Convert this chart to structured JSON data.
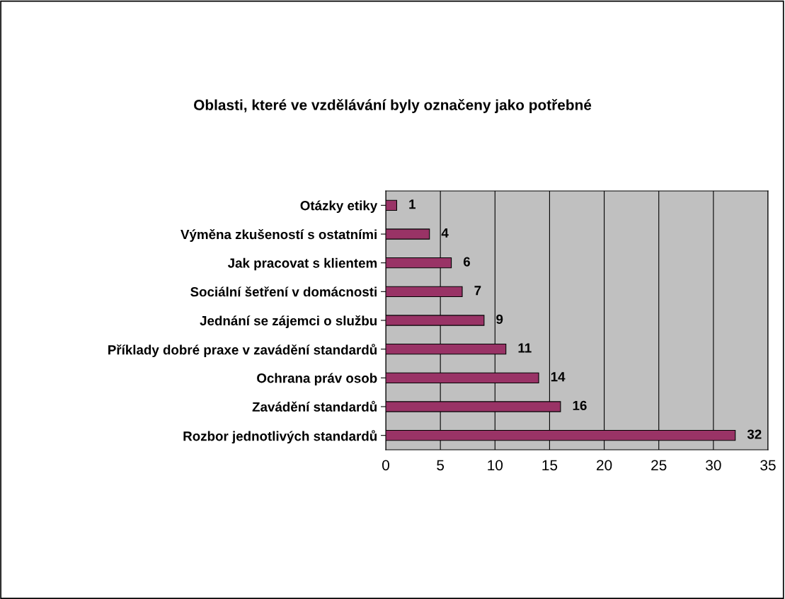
{
  "chart_data": {
    "type": "bar",
    "orientation": "horizontal",
    "title": "Oblasti, které ve vzdělávání byly označeny jako potřebné",
    "categories": [
      "Otázky etiky",
      "Výměna zkušeností s ostatními",
      "Jak pracovat s klientem",
      "Sociální šetření v domácnosti",
      "Jednání se zájemci o službu",
      "Příklady dobré praxe v zavádění standardů",
      "Ochrana práv osob",
      "Zavádění standardů",
      "Rozbor jednotlivých standardů"
    ],
    "values": [
      1,
      4,
      6,
      7,
      9,
      11,
      14,
      16,
      32
    ],
    "color": "#993366",
    "xlim": [
      0,
      35
    ],
    "xticks": [
      0,
      5,
      10,
      15,
      20,
      25,
      30,
      35
    ],
    "grid": "x",
    "data_labels": true
  }
}
